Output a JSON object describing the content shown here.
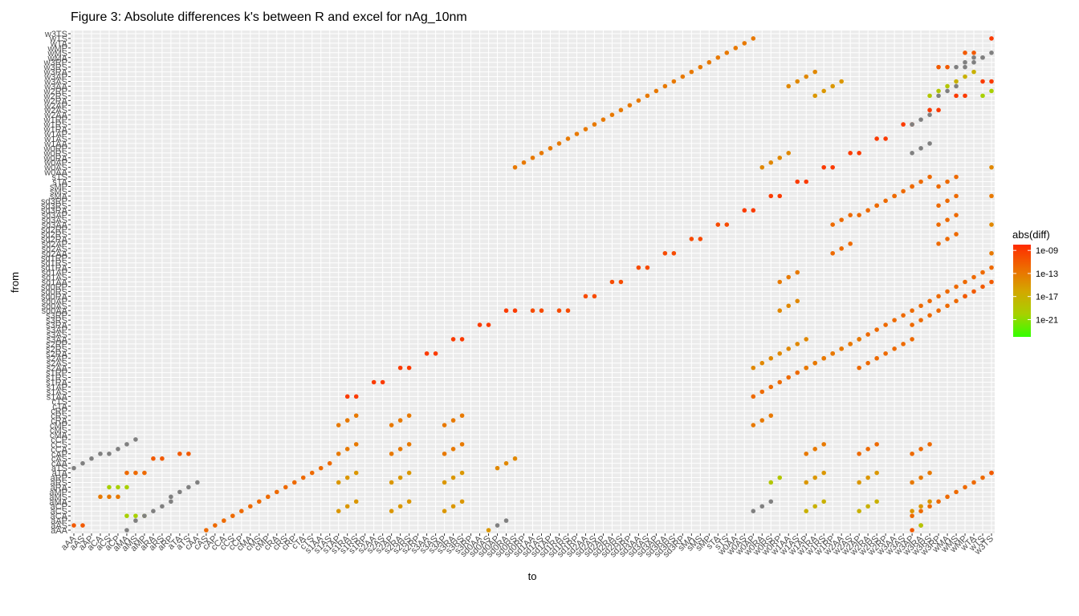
{
  "chart_data": {
    "type": "scatter",
    "title": "Figure 3: Absolute differences k's between R and excel for nAg_10nm",
    "xlabel": "to",
    "ylabel": "from",
    "x_tick_labels": [
      "aAA",
      "aAS",
      "aAP",
      "aCA",
      "aCS",
      "aCP",
      "aMA",
      "aMS",
      "aMP",
      "aRA",
      "aRS",
      "aRP",
      "aTA",
      "aTS",
      "cAA",
      "cAS",
      "cAP",
      "cCA",
      "cCS",
      "cCP",
      "cMA",
      "cMS",
      "cMP",
      "cRA",
      "cRS",
      "cRP",
      "cTA",
      "cTS",
      "s1AA",
      "s1AS",
      "s1AP",
      "s1RA",
      "s1RS",
      "s1RP",
      "s2AA",
      "s2AS",
      "s2AP",
      "s2RA",
      "s2RS",
      "s2RP",
      "s3AA",
      "s3AS",
      "s3AP",
      "s3RA",
      "s3RS",
      "s3RP",
      "sd0AA",
      "sd0AS",
      "sd0AP",
      "sd0RA",
      "sd0RS",
      "sd0RP",
      "sd1AA",
      "sd1AS",
      "sd1AP",
      "sd1RA",
      "sd1RS",
      "sd1RP",
      "sd2AA",
      "sd2AS",
      "sd2AP",
      "sd2RA",
      "sd2RS",
      "sd2RP",
      "sd3AA",
      "sd3AS",
      "sd3AP",
      "sd3RA",
      "sd3RS",
      "sd3RP",
      "sMA",
      "sMS",
      "sMP",
      "sTA",
      "sTS",
      "w0AA",
      "w0AS",
      "w0AP",
      "w0RA",
      "w0RS",
      "w0RP",
      "w1AA",
      "w1AS",
      "w1AP",
      "w1RA",
      "w1RS",
      "w1RP",
      "w2AA",
      "w2AS",
      "w2AP",
      "w2RA",
      "w2RS",
      "w2RP",
      "w3AA",
      "w3AS",
      "w3AP",
      "w3RA",
      "w3RS",
      "w3RP",
      "wMA",
      "wMS",
      "wMP",
      "wTA",
      "wTS",
      "w3TS"
    ],
    "y_tick_labels": [
      "aAA",
      "aAS",
      "aAP",
      "aCA",
      "aCS",
      "aCP",
      "aMA",
      "aMS",
      "aMP",
      "aRA",
      "aRS",
      "aRP",
      "aTA",
      "aTS",
      "cAA",
      "cAS",
      "cAP",
      "cCA",
      "cCS",
      "cCP",
      "cMA",
      "cMS",
      "cMP",
      "cRA",
      "cRS",
      "cRP",
      "cTA",
      "cTS",
      "s1AA",
      "s1AS",
      "s1AP",
      "s1RA",
      "s1RS",
      "s1RP",
      "s2AA",
      "s2AS",
      "s2AP",
      "s2RA",
      "s2RS",
      "s2RP",
      "s3AA",
      "s3AS",
      "s3AP",
      "s3RA",
      "s3RS",
      "s3RP",
      "sd0AA",
      "sd0AS",
      "sd0AP",
      "sd0RA",
      "sd0RS",
      "sd0RP",
      "sd1AA",
      "sd1AS",
      "sd1AP",
      "sd1RA",
      "sd1RS",
      "sd1RP",
      "sd2AA",
      "sd2AS",
      "sd2AP",
      "sd2RA",
      "sd2RS",
      "sd2RP",
      "sd3AA",
      "sd3AS",
      "sd3AP",
      "sd3RA",
      "sd3RS",
      "sd3RP",
      "sMA",
      "sMS",
      "sMP",
      "sTA",
      "sTS",
      "w0AA",
      "w0AS",
      "w0AP",
      "w0RA",
      "w0RS",
      "w0RP",
      "w1AA",
      "w1AS",
      "w1AP",
      "w1RA",
      "w1RS",
      "w1RP",
      "w2AA",
      "w2AS",
      "w2AP",
      "w2RA",
      "w2RS",
      "w2RP",
      "w3AA",
      "w3AS",
      "w3AP",
      "w3RA",
      "w3RS",
      "w3RP",
      "wMA",
      "wMS",
      "wMP",
      "wTA",
      "wTS",
      "w3TS"
    ],
    "legend": {
      "title": "abs(diff)",
      "placement": "right",
      "tick_labels": [
        "1e-09",
        "1e-13",
        "1e-17",
        "1e-21"
      ],
      "tick_values_log10": [
        -9,
        -13,
        -17,
        -21
      ],
      "range_log10": [
        -24,
        -8
      ],
      "gradient_colors": [
        "#33ff00",
        "#a8d000",
        "#d4a600",
        "#ee6a00",
        "#ff2b00"
      ]
    },
    "na_color": "#808080",
    "grid": true,
    "series": [
      {
        "name": "segments",
        "segments": [
          [
            0,
            1,
            1,
            1,
            -11
          ],
          [
            0,
            13,
            7,
            19,
            "na"
          ],
          [
            3,
            7,
            5,
            7,
            -13
          ],
          [
            4,
            9,
            6,
            9,
            -20
          ],
          [
            6,
            12,
            8,
            12,
            -12
          ],
          [
            6,
            3,
            8,
            3,
            -20
          ],
          [
            7,
            2,
            14,
            10,
            "na"
          ],
          [
            6,
            0,
            6,
            0,
            "na"
          ],
          [
            9,
            15,
            10,
            15,
            -11
          ],
          [
            12,
            16,
            13,
            16,
            -11
          ],
          [
            15,
            0,
            29,
            14,
            -12
          ],
          [
            30,
            4,
            32,
            6,
            -15
          ],
          [
            30,
            10,
            32,
            12,
            -15
          ],
          [
            30,
            16,
            32,
            18,
            -13
          ],
          [
            30,
            22,
            32,
            24,
            -13
          ],
          [
            36,
            4,
            38,
            6,
            -15
          ],
          [
            36,
            10,
            38,
            12,
            -15
          ],
          [
            36,
            16,
            38,
            18,
            -13
          ],
          [
            36,
            22,
            38,
            24,
            -13
          ],
          [
            42,
            4,
            44,
            6,
            -15
          ],
          [
            42,
            10,
            44,
            12,
            -15
          ],
          [
            42,
            16,
            44,
            18,
            -13
          ],
          [
            42,
            22,
            44,
            24,
            -13
          ],
          [
            47,
            0,
            47,
            0,
            -15
          ],
          [
            48,
            1,
            49,
            2,
            "na"
          ],
          [
            48,
            13,
            50,
            15,
            -14
          ],
          [
            31,
            28,
            32,
            28,
            -9
          ],
          [
            34,
            31,
            35,
            31,
            -9
          ],
          [
            37,
            34,
            38,
            34,
            -9
          ],
          [
            40,
            37,
            41,
            37,
            -9
          ],
          [
            43,
            40,
            44,
            40,
            -9
          ],
          [
            46,
            43,
            47,
            43,
            -9
          ],
          [
            49,
            46,
            50,
            46,
            -9
          ],
          [
            52,
            46,
            53,
            46,
            -10
          ],
          [
            55,
            46,
            56,
            46,
            -10
          ],
          [
            58,
            49,
            59,
            49,
            -10
          ],
          [
            61,
            52,
            62,
            52,
            -10
          ],
          [
            64,
            55,
            65,
            55,
            -10
          ],
          [
            67,
            58,
            68,
            58,
            -10
          ],
          [
            70,
            61,
            71,
            61,
            -10
          ],
          [
            73,
            64,
            74,
            64,
            -10
          ],
          [
            76,
            67,
            77,
            67,
            -9
          ],
          [
            79,
            70,
            80,
            70,
            -9
          ],
          [
            82,
            73,
            83,
            73,
            -9
          ],
          [
            85,
            76,
            86,
            76,
            -9
          ],
          [
            88,
            79,
            89,
            79,
            -9
          ],
          [
            91,
            82,
            92,
            82,
            -9
          ],
          [
            94,
            85,
            95,
            85,
            -9
          ],
          [
            97,
            88,
            98,
            88,
            -9
          ],
          [
            100,
            91,
            101,
            91,
            -9
          ],
          [
            103,
            94,
            104,
            94,
            -9
          ],
          [
            106,
            97,
            107,
            97,
            -9
          ],
          [
            109,
            100,
            110,
            100,
            -9
          ],
          [
            112,
            103,
            113,
            103,
            -9
          ],
          [
            50,
            76,
            77,
            103,
            -13
          ],
          [
            78,
            76,
            81,
            79,
            -14
          ],
          [
            81,
            93,
            84,
            96,
            -14
          ],
          [
            84,
            91,
            87,
            94,
            -15
          ],
          [
            77,
            4,
            79,
            6,
            "na"
          ],
          [
            79,
            10,
            80,
            11,
            -19
          ],
          [
            77,
            22,
            79,
            24,
            -13
          ],
          [
            77,
            28,
            111,
            62,
            -12
          ],
          [
            77,
            34,
            83,
            40,
            -14
          ],
          [
            83,
            34,
            89,
            40,
            -13
          ],
          [
            89,
            34,
            95,
            40,
            -12
          ],
          [
            83,
            4,
            85,
            6,
            -17
          ],
          [
            83,
            10,
            85,
            12,
            -15
          ],
          [
            83,
            16,
            85,
            18,
            -13
          ],
          [
            89,
            4,
            91,
            6,
            -17
          ],
          [
            89,
            10,
            91,
            12,
            -15
          ],
          [
            89,
            16,
            91,
            18,
            -12
          ],
          [
            95,
            4,
            97,
            6,
            -15
          ],
          [
            95,
            10,
            97,
            12,
            -13
          ],
          [
            95,
            16,
            97,
            18,
            -12
          ],
          [
            80,
            46,
            82,
            48,
            -14
          ],
          [
            80,
            52,
            82,
            54,
            -13
          ],
          [
            86,
            58,
            88,
            60,
            -12
          ],
          [
            86,
            64,
            88,
            66,
            -12
          ],
          [
            89,
            66,
            91,
            68,
            -12
          ],
          [
            91,
            68,
            93,
            70,
            -12
          ],
          [
            93,
            70,
            95,
            72,
            -12
          ],
          [
            95,
            72,
            97,
            74,
            -12
          ],
          [
            98,
            60,
            100,
            62,
            -12
          ],
          [
            98,
            64,
            100,
            66,
            -12
          ],
          [
            98,
            68,
            100,
            70,
            -12
          ],
          [
            98,
            72,
            100,
            74,
            -12
          ],
          [
            104,
            58,
            106,
            60,
            -13
          ],
          [
            104,
            64,
            106,
            66,
            -14
          ],
          [
            104,
            70,
            106,
            72,
            -13
          ],
          [
            104,
            76,
            106,
            78,
            -14
          ],
          [
            100,
            97,
            102,
            99,
            "na"
          ],
          [
            103,
            99,
            105,
            101,
            "na"
          ],
          [
            106,
            101,
            108,
            103,
            "na"
          ],
          [
            95,
            85,
            97,
            87,
            "na"
          ],
          [
            98,
            91,
            100,
            93,
            "na"
          ],
          [
            101,
            97,
            103,
            99,
            "na"
          ],
          [
            97,
            91,
            99,
            93,
            -19
          ],
          [
            100,
            94,
            102,
            96,
            -17
          ],
          [
            103,
            91,
            105,
            93,
            -20
          ],
          [
            110,
            103,
            111,
            104,
            "na"
          ],
          [
            113,
            106,
            114,
            107,
            -10
          ],
          [
            114,
            103,
            115,
            104,
            -9
          ],
          [
            110,
            94,
            112,
            96,
            -9
          ],
          [
            113,
            97,
            114,
            97,
            -9
          ],
          [
            116,
            94,
            118,
            96,
            -11
          ],
          [
            119,
            100,
            121,
            102,
            -11
          ],
          [
            113,
            81,
            116,
            84,
            -11
          ],
          [
            113,
            88,
            117,
            92,
            -11
          ],
          [
            109,
            85,
            111,
            87,
            "na"
          ],
          [
            95,
            79,
            97,
            81,
            "na"
          ],
          [
            98,
            97,
            99,
            97,
            -11
          ],
          [
            101,
            100,
            102,
            100,
            -11
          ],
          [
            104,
            103,
            105,
            103,
            -9
          ],
          [
            107,
            106,
            108,
            106,
            -10
          ],
          [
            95,
            3,
            104,
            12,
            -12
          ],
          [
            104,
            12,
            110,
            18,
            -11
          ],
          [
            95,
            43,
            101,
            49,
            -12
          ],
          [
            101,
            49,
            107,
            55,
            -11
          ],
          [
            107,
            55,
            113,
            61,
            -11
          ],
          [
            110,
            1,
            117,
            8,
            "na"
          ],
          [
            110,
            9,
            114,
            13,
            -14
          ],
          [
            114,
            13,
            120,
            19,
            -13
          ],
          [
            113,
            58,
            120,
            65,
            -12
          ],
          [
            109,
            64,
            111,
            66,
            -12
          ],
          [
            117,
            67,
            119,
            69,
            -12
          ],
          [
            109,
            97,
            110,
            97,
            -11
          ],
          [
            114,
            94,
            116,
            96,
            -10
          ],
          [
            118,
            97,
            119,
            97,
            -9
          ],
          [
            118,
            104,
            119,
            104,
            -9
          ],
          [
            95,
            0,
            96,
            1,
            -11
          ],
          [
            96,
            1,
            96,
            1,
            -19
          ]
        ]
      }
    ]
  }
}
